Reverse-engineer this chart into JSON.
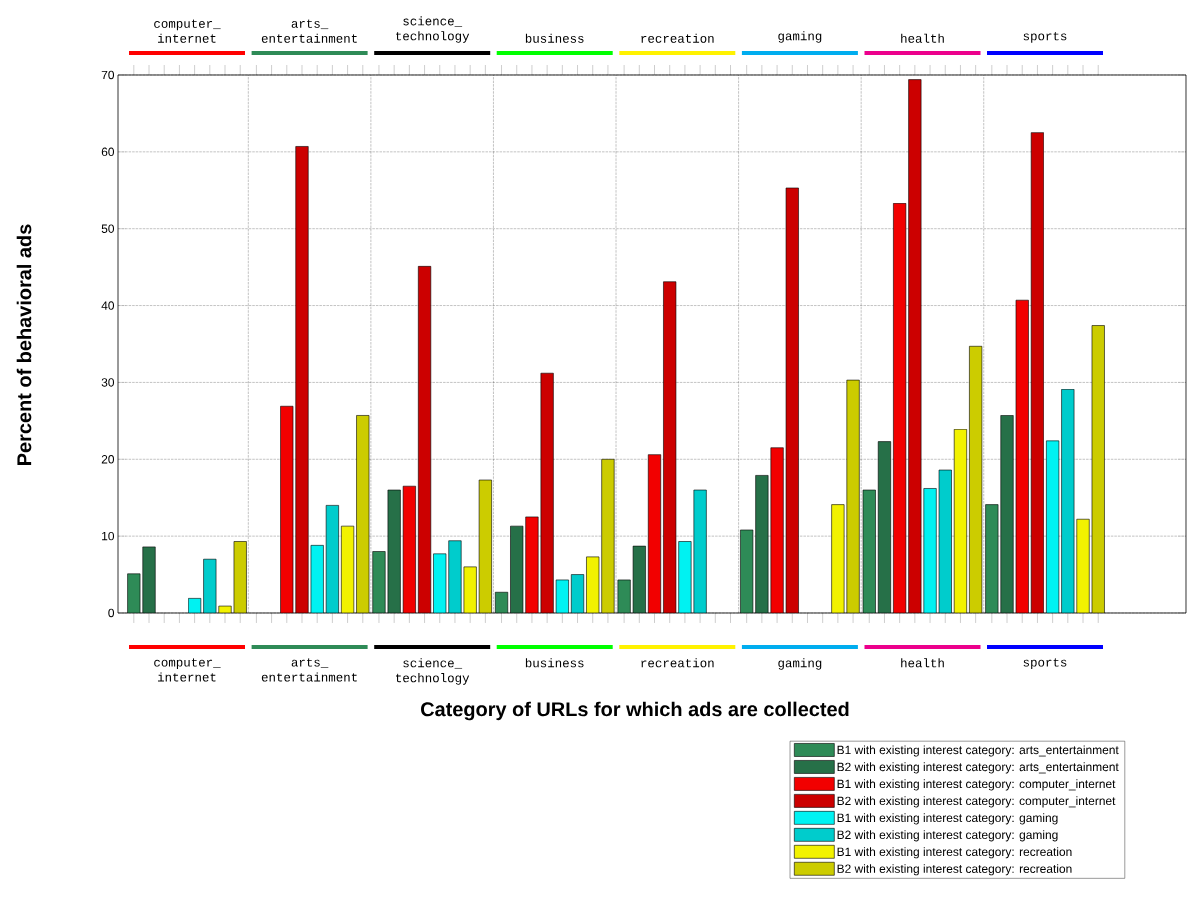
{
  "chart_data": {
    "type": "bar",
    "xlabel": "Category of URLs for which ads are collected",
    "ylabel": "Percent of behavioral ads",
    "categories": [
      "computer_ internet",
      "arts_ entertainment",
      "science_ technology",
      "business",
      "recreation",
      "gaming",
      "health",
      "sports"
    ],
    "series": [
      {
        "name": "B1 with existing interest category: arts_entertainment",
        "color": "#2e8b57",
        "values": [
          5.1,
          null,
          8.0,
          2.7,
          4.3,
          10.8,
          16.0,
          14.1
        ]
      },
      {
        "name": "B2 with existing interest category: arts_entertainment",
        "color": "#267048",
        "values": [
          8.6,
          null,
          16.0,
          11.3,
          8.7,
          17.9,
          22.3,
          25.7
        ]
      },
      {
        "name": "B1 with existing interest category: computer_internet",
        "color": "#f20000",
        "values": [
          null,
          26.9,
          16.5,
          12.5,
          20.6,
          21.5,
          53.3,
          40.7
        ]
      },
      {
        "name": "B2 with existing interest category: computer_internet",
        "color": "#cc0000",
        "values": [
          null,
          60.7,
          45.1,
          31.2,
          43.1,
          55.3,
          69.4,
          62.5
        ]
      },
      {
        "name": "B1 with existing interest category: gaming",
        "color": "#00f2f2",
        "values": [
          1.9,
          8.8,
          7.7,
          4.3,
          9.3,
          null,
          16.2,
          22.4
        ]
      },
      {
        "name": "B2 with existing interest category: gaming",
        "color": "#00cccc",
        "values": [
          7.0,
          14.0,
          9.4,
          5.0,
          16.0,
          null,
          18.6,
          29.1
        ]
      },
      {
        "name": "B1 with existing interest category: recreation",
        "color": "#f2f200",
        "values": [
          0.9,
          11.3,
          6.0,
          7.3,
          null,
          14.1,
          23.9,
          12.2
        ]
      },
      {
        "name": "B2 with existing interest category: recreation",
        "color": "#cccc00",
        "values": [
          9.3,
          25.7,
          17.3,
          20.0,
          null,
          30.3,
          34.7,
          37.4
        ]
      }
    ],
    "ylim": [
      0,
      70
    ],
    "yticks": [
      0,
      10,
      20,
      30,
      40,
      50,
      60,
      70
    ],
    "grid": true,
    "legend": "bottom right"
  }
}
